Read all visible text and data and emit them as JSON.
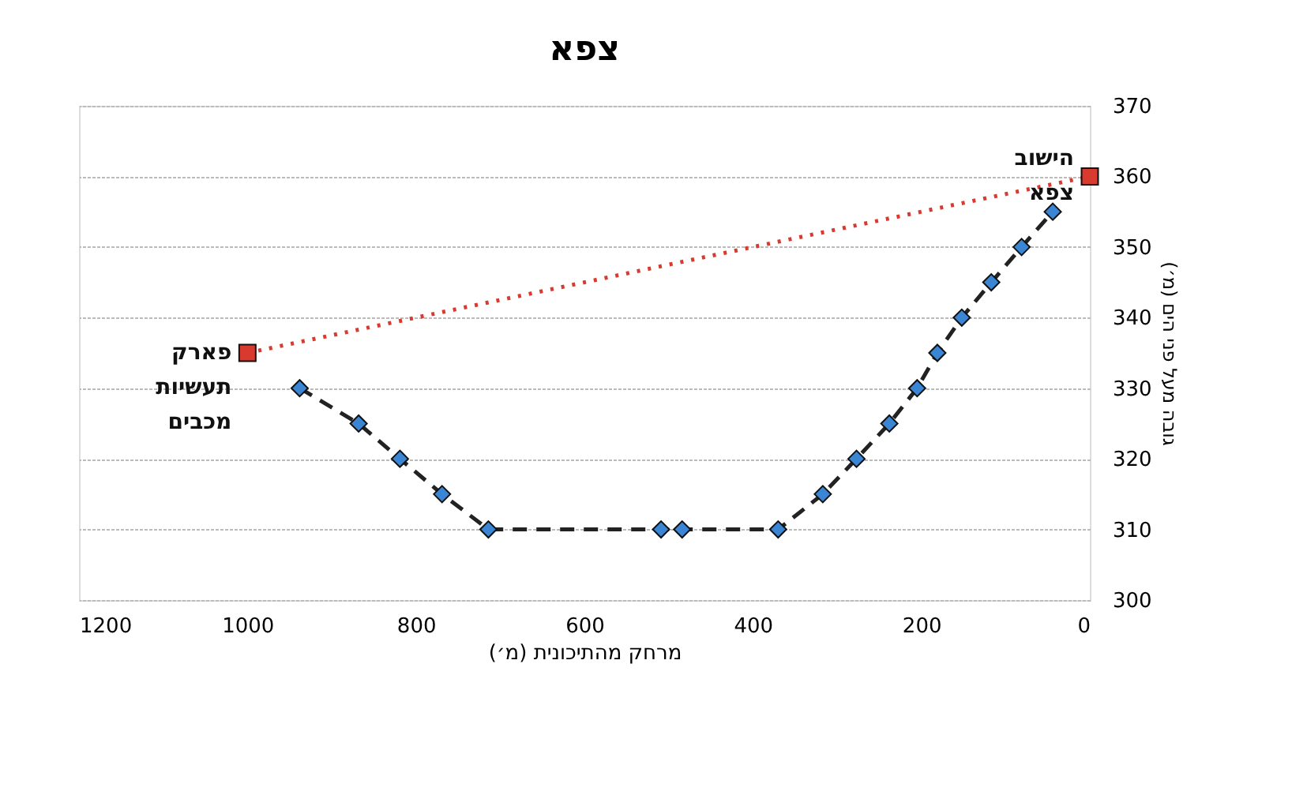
{
  "chart_data": {
    "type": "line",
    "title": "צפא",
    "xlabel": "מרחק מהתיכונית (מ׳)",
    "ylabel": "גובה מעל פני הים (מ׳)",
    "xlim": [
      1200,
      0
    ],
    "xticks": [
      1200,
      1000,
      800,
      600,
      400,
      200,
      0
    ],
    "ylim": [
      300,
      370
    ],
    "yticks": [
      300,
      310,
      320,
      330,
      340,
      350,
      360,
      370
    ],
    "grid": "y",
    "series": [
      {
        "color": "#3b86d4",
        "line_style": "dashed",
        "marker": "diamond",
        "x": [
          938,
          868,
          819,
          769,
          714,
          509,
          484,
          370,
          317,
          277,
          238,
          205,
          181,
          152,
          117,
          81,
          44
        ],
        "values": [
          330,
          325,
          320,
          315,
          310,
          310,
          310,
          310,
          315,
          320,
          325,
          330,
          335,
          340,
          345,
          350,
          355
        ]
      },
      {
        "color": "#d93a30",
        "line_style": "dotted",
        "marker": "square",
        "x": [
          1000,
          0
        ],
        "values": [
          335,
          360
        ]
      }
    ],
    "annotations": [
      {
        "text": "פארק\nתעשיות\nמכבים",
        "x": 1000,
        "y": 335
      },
      {
        "text": "הישוב\nצפא",
        "x": 0,
        "y": 360
      }
    ]
  }
}
